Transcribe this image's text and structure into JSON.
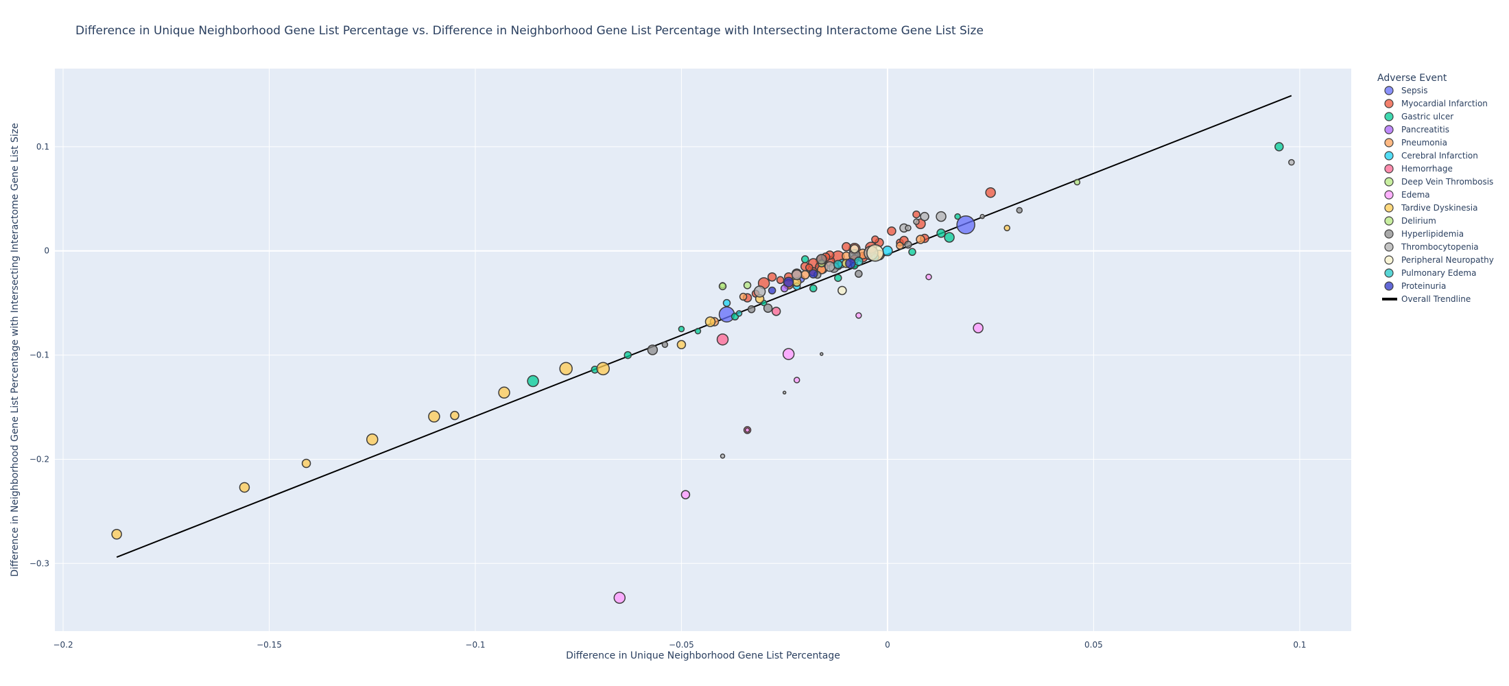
{
  "chart_data": {
    "type": "scatter",
    "title": "Difference in Unique Neighborhood Gene List Percentage vs. Difference in Neighborhood Gene List Percentage with Intersecting Interactome Gene List Size",
    "xlabel": "Difference in Unique Neighborhood Gene List Percentage",
    "ylabel": "Difference in Neighborhood Gene List Percentage with Intersecting Interactome Gene List Size",
    "xlim": [
      -0.202,
      0.1125
    ],
    "ylim": [
      -0.365,
      0.175
    ],
    "xticks": [
      -0.2,
      -0.15,
      -0.1,
      -0.05,
      0,
      0.05,
      0.1
    ],
    "xtick_labels": [
      "−0.2",
      "−0.15",
      "−0.1",
      "−0.05",
      "0",
      "0.05",
      "0.1"
    ],
    "yticks": [
      -0.3,
      -0.2,
      -0.1,
      0,
      0.1
    ],
    "ytick_labels": [
      "−0.3",
      "−0.2",
      "−0.1",
      "0",
      "0.1"
    ],
    "grid": true,
    "legend_title": "Adverse Event",
    "legend_position": "right",
    "trendline": {
      "name": "Overall Trendline",
      "x": [
        -0.187,
        0.098
      ],
      "y": [
        -0.294,
        0.149
      ],
      "color": "#000000"
    },
    "series": [
      {
        "name": "Sepsis",
        "color": "#636efa",
        "points": [
          [
            0.019,
            0.025,
            13
          ],
          [
            -0.039,
            -0.061,
            11
          ],
          [
            -0.021,
            -0.027,
            5
          ],
          [
            -0.005,
            -0.004,
            6
          ],
          [
            -0.012,
            -0.014,
            6
          ]
        ]
      },
      {
        "name": "Myocardial Infarction",
        "color": "#ef553b",
        "points": [
          [
            0.025,
            0.056,
            7
          ],
          [
            0.008,
            0.026,
            7
          ],
          [
            0.001,
            0.019,
            6
          ],
          [
            0.007,
            0.035,
            5
          ],
          [
            -0.004,
            0.003,
            8
          ],
          [
            -0.008,
            0.002,
            8
          ],
          [
            -0.01,
            0.004,
            6
          ],
          [
            -0.012,
            -0.006,
            9
          ],
          [
            -0.014,
            -0.01,
            7
          ],
          [
            -0.016,
            -0.009,
            8
          ],
          [
            -0.018,
            -0.012,
            7
          ],
          [
            -0.02,
            -0.015,
            6
          ],
          [
            -0.022,
            -0.022,
            7
          ],
          [
            -0.024,
            -0.025,
            6
          ],
          [
            -0.026,
            -0.028,
            5
          ],
          [
            -0.028,
            -0.025,
            6
          ],
          [
            -0.03,
            -0.031,
            8
          ],
          [
            -0.032,
            -0.041,
            5
          ],
          [
            -0.016,
            -0.016,
            9
          ],
          [
            -0.014,
            -0.004,
            6
          ],
          [
            -0.002,
            0.008,
            6
          ],
          [
            0.003,
            0.008,
            5
          ],
          [
            -0.006,
            -0.006,
            7
          ],
          [
            -0.018,
            -0.02,
            6
          ],
          [
            -0.034,
            -0.045,
            6
          ],
          [
            -0.024,
            -0.032,
            7
          ],
          [
            0.009,
            0.012,
            6
          ],
          [
            -0.008,
            -0.008,
            6
          ],
          [
            -0.019,
            -0.016,
            5
          ],
          [
            -0.003,
            0.011,
            5
          ],
          [
            0.004,
            0.01,
            6
          ],
          [
            -0.015,
            -0.006,
            6
          ]
        ]
      },
      {
        "name": "Gastric ulcer",
        "color": "#00cc96",
        "points": [
          [
            0.095,
            0.1,
            6
          ],
          [
            0.015,
            0.013,
            7
          ],
          [
            0.013,
            0.017,
            6
          ],
          [
            -0.086,
            -0.125,
            8
          ],
          [
            -0.071,
            -0.114,
            5
          ],
          [
            -0.063,
            -0.1,
            5
          ],
          [
            -0.05,
            -0.075,
            4
          ],
          [
            -0.046,
            -0.077,
            4
          ],
          [
            -0.037,
            -0.063,
            5
          ],
          [
            -0.018,
            -0.036,
            5
          ],
          [
            0.006,
            -0.001,
            5
          ],
          [
            0.017,
            0.033,
            4
          ],
          [
            -0.012,
            -0.026,
            5
          ],
          [
            -0.03,
            -0.05,
            4
          ],
          [
            -0.02,
            -0.008,
            5
          ],
          [
            -0.008,
            -0.014,
            5
          ]
        ]
      },
      {
        "name": "Pancreatitis",
        "color": "#ab63fa",
        "points": [
          [
            -0.025,
            -0.036,
            5
          ]
        ]
      },
      {
        "name": "Pneumonia",
        "color": "#ffa15a",
        "points": [
          [
            -0.042,
            -0.068,
            6
          ],
          [
            0.008,
            0.011,
            6
          ],
          [
            -0.002,
            -0.004,
            7
          ],
          [
            -0.006,
            -0.003,
            7
          ],
          [
            -0.035,
            -0.044,
            5
          ],
          [
            -0.02,
            -0.023,
            6
          ],
          [
            -0.01,
            -0.005,
            6
          ],
          [
            0.003,
            0.005,
            5
          ],
          [
            -0.016,
            -0.018,
            6
          ]
        ]
      },
      {
        "name": "Cerebral Infarction",
        "color": "#19d3f3",
        "points": [
          [
            0.0,
            0.0,
            7
          ],
          [
            -0.039,
            -0.05,
            5
          ],
          [
            -0.011,
            -0.012,
            6
          ],
          [
            -0.003,
            -0.006,
            5
          ],
          [
            -0.022,
            -0.034,
            5
          ]
        ]
      },
      {
        "name": "Hemorrhage",
        "color": "#ff6692",
        "points": [
          [
            -0.04,
            -0.085,
            8
          ],
          [
            -0.027,
            -0.058,
            6
          ],
          [
            -0.034,
            -0.172,
            5
          ]
        ]
      },
      {
        "name": "Deep Vein Thrombosis",
        "color": "#b6e880",
        "points": [
          [
            -0.04,
            -0.033,
            4
          ]
        ]
      },
      {
        "name": "Edema",
        "color": "#ff97ff",
        "points": [
          [
            -0.065,
            -0.333,
            8
          ],
          [
            -0.049,
            -0.234,
            6
          ],
          [
            -0.024,
            -0.099,
            8
          ],
          [
            0.022,
            -0.074,
            7
          ],
          [
            0.01,
            -0.025,
            4
          ],
          [
            -0.007,
            -0.062,
            4
          ],
          [
            -0.022,
            -0.124,
            4
          ],
          [
            -0.034,
            -0.172,
            3
          ]
        ]
      },
      {
        "name": "Tardive Dyskinesia",
        "color": "#fecb52",
        "points": [
          [
            -0.187,
            -0.272,
            7
          ],
          [
            -0.156,
            -0.227,
            7
          ],
          [
            -0.141,
            -0.204,
            6
          ],
          [
            -0.125,
            -0.181,
            8
          ],
          [
            -0.11,
            -0.159,
            8
          ],
          [
            -0.105,
            -0.158,
            6
          ],
          [
            -0.093,
            -0.136,
            8
          ],
          [
            -0.078,
            -0.113,
            9
          ],
          [
            -0.069,
            -0.113,
            9
          ],
          [
            -0.05,
            -0.09,
            6
          ],
          [
            -0.043,
            -0.068,
            7
          ],
          [
            -0.031,
            -0.046,
            6
          ],
          [
            -0.022,
            -0.03,
            6
          ],
          [
            -0.01,
            -0.012,
            6
          ],
          [
            0.029,
            0.022,
            4
          ]
        ]
      },
      {
        "name": "Delirium",
        "color": "#b6e880",
        "points": [
          [
            0.046,
            0.066,
            4
          ],
          [
            -0.034,
            -0.033,
            5
          ],
          [
            -0.04,
            -0.034,
            5
          ],
          [
            -0.016,
            -0.012,
            5
          ]
        ]
      },
      {
        "name": "Hyperlipidemia",
        "color": "#8c8c8c",
        "points": [
          [
            -0.057,
            -0.095,
            7
          ],
          [
            -0.054,
            -0.09,
            4
          ],
          [
            -0.033,
            -0.056,
            5
          ],
          [
            -0.029,
            -0.055,
            6
          ],
          [
            -0.017,
            -0.023,
            5
          ],
          [
            -0.007,
            -0.022,
            5
          ],
          [
            -0.016,
            -0.008,
            7
          ],
          [
            -0.008,
            -0.004,
            8
          ],
          [
            0.032,
            0.039,
            4
          ],
          [
            0.005,
            0.006,
            5
          ],
          [
            -0.013,
            -0.016,
            7
          ]
        ]
      },
      {
        "name": "Thrombocytopenia",
        "color": "#b0b0b0",
        "points": [
          [
            0.013,
            0.033,
            7
          ],
          [
            -0.031,
            -0.039,
            8
          ],
          [
            -0.022,
            -0.023,
            7
          ],
          [
            -0.004,
            -0.002,
            10
          ],
          [
            -0.014,
            -0.015,
            7
          ],
          [
            0.009,
            0.033,
            6
          ],
          [
            0.004,
            0.022,
            6
          ],
          [
            0.007,
            0.028,
            4
          ],
          [
            -0.016,
            -0.099,
            2
          ],
          [
            -0.025,
            -0.136,
            2
          ],
          [
            -0.04,
            -0.197,
            3
          ],
          [
            0.023,
            0.033,
            3
          ],
          [
            0.098,
            0.085,
            4
          ],
          [
            0.005,
            0.022,
            4
          ]
        ]
      },
      {
        "name": "Peripheral Neuropathy",
        "color": "#f5f0c8",
        "points": [
          [
            -0.011,
            -0.038,
            6
          ],
          [
            -0.003,
            -0.002,
            12
          ],
          [
            -0.008,
            0.002,
            6
          ]
        ]
      },
      {
        "name": "Pulmonary Edema",
        "color": "#22c7c7",
        "points": [
          [
            -0.012,
            -0.013,
            6
          ],
          [
            -0.007,
            -0.01,
            6
          ],
          [
            -0.036,
            -0.06,
            4
          ]
        ]
      },
      {
        "name": "Proteinuria",
        "color": "#2e35c8",
        "points": [
          [
            -0.024,
            -0.03,
            7
          ],
          [
            -0.018,
            -0.022,
            6
          ],
          [
            -0.009,
            -0.012,
            7
          ],
          [
            -0.028,
            -0.038,
            5
          ]
        ]
      }
    ]
  }
}
